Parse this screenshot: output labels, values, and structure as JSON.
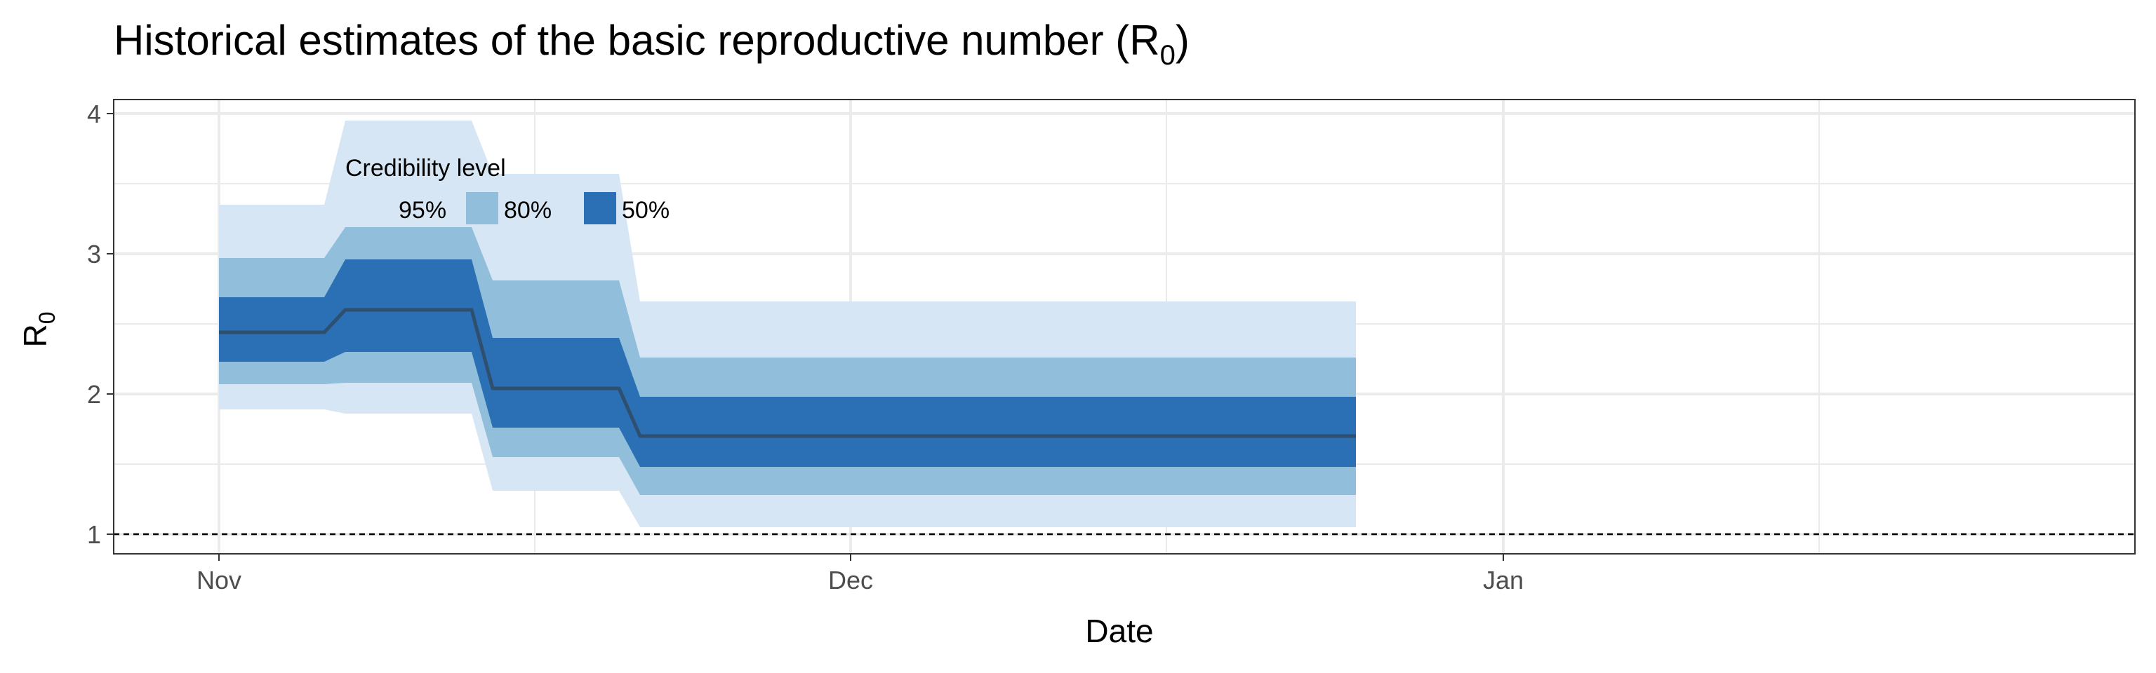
{
  "chart_data": {
    "type": "area",
    "title": "Historical estimates of the basic reproductive number (R",
    "title_subscript": "0",
    "title_suffix": ")",
    "xlabel": "Date",
    "ylabel": "R",
    "ylabel_subscript": "0",
    "x_ticks": [
      {
        "date": "2020-11-01",
        "label": "Nov"
      },
      {
        "date": "2020-12-01",
        "label": "Dec"
      },
      {
        "date": "2021-01-01",
        "label": "Jan"
      }
    ],
    "x_minor_ticks": [
      "2020-11-16",
      "2020-12-16",
      "2021-01-16"
    ],
    "xlim": [
      "2020-10-27",
      "2021-01-31"
    ],
    "y_ticks": [
      1,
      2,
      3,
      4
    ],
    "ylim": [
      0.86,
      4.1
    ],
    "reference_line": {
      "y": 1,
      "style": "dashed"
    },
    "grid": true,
    "legend": {
      "title": "Credibility level",
      "placement": "inside-top-left",
      "items": [
        {
          "label": "95%",
          "color": "#d6e6f4"
        },
        {
          "label": "80%",
          "color": "#91bfdb"
        },
        {
          "label": "50%",
          "color": "#2b6fb4"
        }
      ]
    },
    "series": [
      {
        "x": [
          "2020-11-01",
          "2020-11-06",
          "2020-11-07",
          "2020-11-13",
          "2020-11-14",
          "2020-11-20",
          "2020-11-21",
          "2020-12-25"
        ],
        "median": [
          2.44,
          2.44,
          2.6,
          2.6,
          2.04,
          2.04,
          1.7,
          1.7
        ],
        "lower_95": [
          1.89,
          1.89,
          1.86,
          1.86,
          1.31,
          1.31,
          1.05,
          1.05
        ],
        "upper_95": [
          3.35,
          3.35,
          3.95,
          3.95,
          3.57,
          3.57,
          2.66,
          2.66
        ],
        "lower_80": [
          2.07,
          2.07,
          2.08,
          2.08,
          1.55,
          1.55,
          1.28,
          1.28
        ],
        "upper_80": [
          2.97,
          2.97,
          3.19,
          3.19,
          2.81,
          2.81,
          2.26,
          2.26
        ],
        "lower_50": [
          2.23,
          2.23,
          2.3,
          2.3,
          1.76,
          1.76,
          1.48,
          1.48
        ],
        "upper_50": [
          2.69,
          2.69,
          2.96,
          2.96,
          2.4,
          2.4,
          1.98,
          1.98
        ]
      }
    ],
    "colors": {
      "median_line": "#2f4f6f",
      "grid": "#ebebeb",
      "panel_border": "#333333"
    }
  }
}
